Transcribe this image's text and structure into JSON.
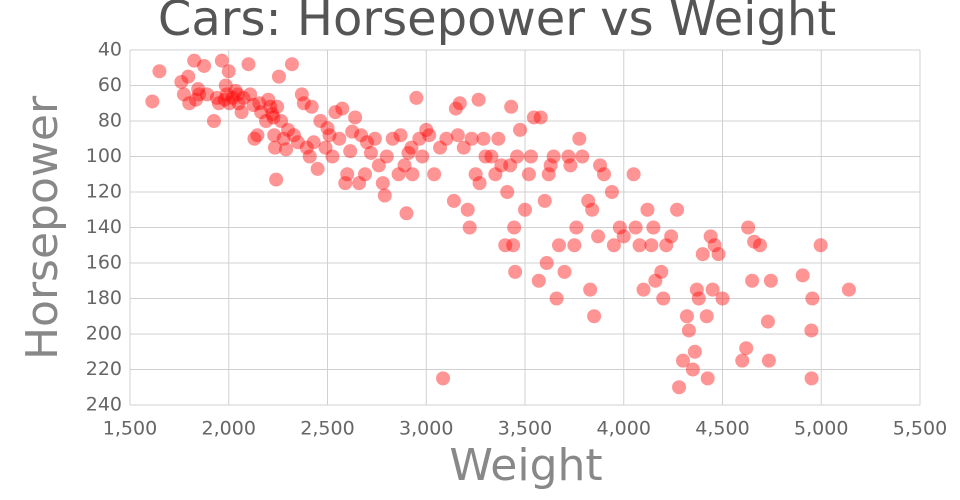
{
  "chart_data": {
    "type": "scatter",
    "title": "Cars: Horsepower vs Weight",
    "x_label": "Weight",
    "y_label": "Horsepower",
    "color": "#ff0000",
    "grid": true,
    "xlim": [
      1500,
      5500
    ],
    "xticks": [
      {
        "value": 1500,
        "label": "1,500"
      },
      {
        "value": 2000,
        "label": "2,000"
      },
      {
        "value": 2500,
        "label": "2,500"
      },
      {
        "value": 3000,
        "label": "3,000"
      },
      {
        "value": 3500,
        "label": "3,500"
      },
      {
        "value": 4000,
        "label": "4,000"
      },
      {
        "value": 4500,
        "label": "4,500"
      },
      {
        "value": 5000,
        "label": "5,000"
      },
      {
        "value": 5500,
        "label": "5,500"
      }
    ],
    "ylim": [
      240,
      40
    ],
    "yticks": [
      40,
      60,
      80,
      100,
      120,
      140,
      160,
      180,
      200,
      220,
      240
    ],
    "x": [
      1613,
      1649,
      1760,
      1773,
      1795,
      1800,
      1825,
      1834,
      1845,
      1850,
      1875,
      1890,
      1925,
      1940,
      1950,
      1965,
      1980,
      1985,
      1990,
      2000,
      2003,
      2019,
      2035,
      2045,
      2050,
      2065,
      2074,
      2100,
      2108,
      2125,
      2130,
      2145,
      2155,
      2164,
      2189,
      2200,
      2210,
      2220,
      2226,
      2230,
      2234,
      2240,
      2245,
      2254,
      2265,
      2278,
      2290,
      2300,
      2320,
      2330,
      2350,
      2370,
      2380,
      2395,
      2410,
      2420,
      2430,
      2450,
      2464,
      2490,
      2500,
      2510,
      2525,
      2540,
      2560,
      2575,
      2590,
      2600,
      2615,
      2625,
      2640,
      2660,
      2670,
      2690,
      2700,
      2720,
      2740,
      2760,
      2780,
      2790,
      2800,
      2830,
      2860,
      2870,
      2890,
      2900,
      2910,
      2925,
      2930,
      2950,
      2965,
      2980,
      3000,
      3015,
      3040,
      3070,
      3085,
      3102,
      3140,
      3150,
      3160,
      3170,
      3190,
      3210,
      3220,
      3230,
      3250,
      3265,
      3270,
      3290,
      3300,
      3330,
      3350,
      3365,
      3380,
      3400,
      3410,
      3425,
      3430,
      3440,
      3445,
      3450,
      3460,
      3475,
      3500,
      3520,
      3530,
      3545,
      3570,
      3580,
      3600,
      3610,
      3620,
      3630,
      3645,
      3660,
      3672,
      3700,
      3720,
      3730,
      3750,
      3760,
      3775,
      3790,
      3820,
      3830,
      3840,
      3850,
      3870,
      3880,
      3900,
      3940,
      3950,
      3980,
      4000,
      4050,
      4060,
      4080,
      4100,
      4120,
      4140,
      4150,
      4160,
      4190,
      4200,
      4215,
      4240,
      4270,
      4280,
      4300,
      4320,
      4330,
      4350,
      4360,
      4370,
      4380,
      4400,
      4420,
      4425,
      4440,
      4450,
      4460,
      4480,
      4500,
      4600,
      4620,
      4630,
      4650,
      4660,
      4690,
      4730,
      4735,
      4745,
      4906,
      4950,
      4951,
      4955,
      4997,
      5140
    ],
    "values": [
      69,
      52,
      58,
      65,
      55,
      70,
      46,
      68,
      62,
      65,
      49,
      65,
      80,
      67,
      70,
      46,
      68,
      60,
      65,
      52,
      70,
      67,
      63,
      65,
      70,
      75,
      67,
      48,
      65,
      71,
      90,
      88,
      70,
      75,
      80,
      68,
      72,
      76,
      78,
      88,
      95,
      113,
      72,
      55,
      80,
      90,
      96,
      85,
      48,
      88,
      92,
      65,
      70,
      95,
      100,
      72,
      92,
      107,
      80,
      95,
      84,
      88,
      100,
      75,
      90,
      73,
      115,
      110,
      97,
      86,
      78,
      115,
      88,
      110,
      92,
      98,
      90,
      105,
      115,
      122,
      100,
      90,
      110,
      88,
      105,
      132,
      98,
      95,
      110,
      67,
      90,
      100,
      85,
      88,
      110,
      95,
      225,
      90,
      125,
      73,
      88,
      70,
      95,
      130,
      140,
      90,
      110,
      68,
      115,
      90,
      100,
      100,
      110,
      90,
      105,
      150,
      120,
      105,
      72,
      150,
      140,
      165,
      100,
      85,
      130,
      110,
      100,
      78,
      170,
      78,
      125,
      160,
      110,
      105,
      100,
      180,
      150,
      165,
      100,
      105,
      150,
      140,
      90,
      100,
      125,
      175,
      130,
      190,
      145,
      105,
      110,
      120,
      150,
      140,
      145,
      110,
      140,
      150,
      175,
      130,
      150,
      140,
      170,
      165,
      180,
      150,
      145,
      130,
      230,
      215,
      190,
      198,
      220,
      210,
      175,
      180,
      155,
      190,
      225,
      145,
      175,
      150,
      155,
      180,
      215,
      208,
      140,
      170,
      148,
      150,
      193,
      215,
      170,
      167,
      198,
      225,
      180,
      150,
      175
    ]
  }
}
